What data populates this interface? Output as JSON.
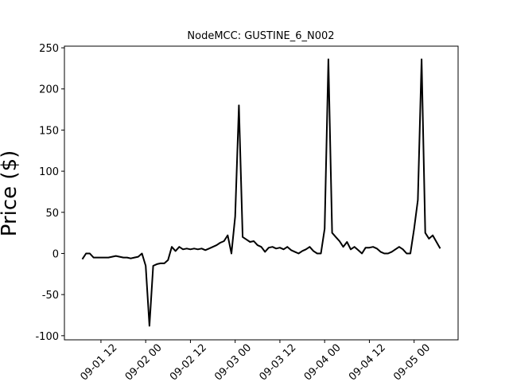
{
  "chart_data": {
    "type": "line",
    "title": "NodeMCC: GUSTINE_6_N002",
    "y_label": "Price ($)",
    "color": "#000000",
    "x": [
      "09-01 07",
      "09-01 08",
      "09-01 09",
      "09-01 10",
      "09-01 11",
      "09-01 12",
      "09-01 13",
      "09-01 14",
      "09-01 15",
      "09-01 16",
      "09-01 17",
      "09-01 18",
      "09-01 19",
      "09-01 20",
      "09-01 21",
      "09-01 22",
      "09-01 23",
      "09-02 00",
      "09-02 01",
      "09-02 02",
      "09-02 03",
      "09-02 04",
      "09-02 05",
      "09-02 06",
      "09-02 07",
      "09-02 08",
      "09-02 09",
      "09-02 10",
      "09-02 11",
      "09-02 12",
      "09-02 13",
      "09-02 14",
      "09-02 15",
      "09-02 16",
      "09-02 17",
      "09-02 18",
      "09-02 19",
      "09-02 20",
      "09-02 21",
      "09-02 22",
      "09-02 23",
      "09-03 00",
      "09-03 01",
      "09-03 02",
      "09-03 03",
      "09-03 04",
      "09-03 05",
      "09-03 06",
      "09-03 07",
      "09-03 08",
      "09-03 09",
      "09-03 10",
      "09-03 11",
      "09-03 12",
      "09-03 13",
      "09-03 14",
      "09-03 15",
      "09-03 16",
      "09-03 17",
      "09-03 18",
      "09-03 19",
      "09-03 20",
      "09-03 21",
      "09-03 22",
      "09-03 23",
      "09-04 00",
      "09-04 01",
      "09-04 02",
      "09-04 03",
      "09-04 04",
      "09-04 05",
      "09-04 06",
      "09-04 07",
      "09-04 08",
      "09-04 09",
      "09-04 10",
      "09-04 11",
      "09-04 12",
      "09-04 13",
      "09-04 14",
      "09-04 15",
      "09-04 16",
      "09-04 17",
      "09-04 18",
      "09-04 19",
      "09-04 20",
      "09-04 21",
      "09-04 22",
      "09-04 23",
      "09-05 00",
      "09-05 01",
      "09-05 02",
      "09-05 03",
      "09-05 04",
      "09-05 05",
      "09-05 06",
      "09-05 07"
    ],
    "values": [
      -7,
      0,
      0,
      -5,
      -5,
      -5,
      -5,
      -5,
      -4,
      -3,
      -4,
      -5,
      -5,
      -6,
      -5,
      -4,
      0,
      -15,
      -88,
      -15,
      -13,
      -12,
      -12,
      -8,
      8,
      3,
      8,
      5,
      6,
      5,
      6,
      5,
      6,
      4,
      6,
      8,
      10,
      13,
      15,
      22,
      0,
      45,
      180,
      20,
      17,
      14,
      15,
      10,
      8,
      2,
      7,
      8,
      6,
      7,
      5,
      8,
      4,
      2,
      0,
      3,
      5,
      8,
      3,
      0,
      0,
      30,
      236,
      25,
      20,
      15,
      8,
      14,
      5,
      8,
      4,
      0,
      7,
      7,
      8,
      6,
      2,
      0,
      0,
      2,
      5,
      8,
      5,
      0,
      0,
      30,
      65,
      236,
      25,
      18,
      22,
      14,
      6
    ],
    "xlim": [
      "09-01 02:12",
      "09-05 11:48"
    ],
    "xticks": [
      "09-01 12",
      "09-02 00",
      "09-02 12",
      "09-03 00",
      "09-03 12",
      "09-04 00",
      "09-04 12",
      "09-05 00"
    ],
    "ylim": [
      -105,
      252
    ],
    "yticks": [
      -100,
      -50,
      0,
      50,
      100,
      150,
      200,
      250
    ]
  }
}
